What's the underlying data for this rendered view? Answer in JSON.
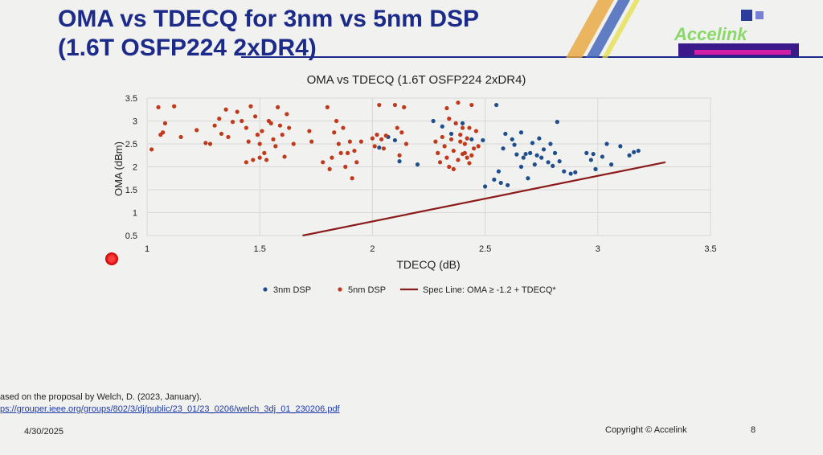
{
  "slide": {
    "title_line1": "OMA vs TDECQ for 3nm vs 5nm DSP",
    "title_line2": "(1.6T OSFP224 2xDR4)",
    "logo_text": "Accelink",
    "footnote_line1": "ased on the proposal by Welch, D. (2023, January).",
    "footnote_line2": "ps://grouper.ieee.org/groups/802/3/dj/public/23_01/23_0206/welch_3dj_01_230206.pdf",
    "date": "4/30/2025",
    "copyright": "Copyright © Accelink",
    "page_number": "8"
  },
  "colors": {
    "title": "#1c2a8a",
    "series_3nm": "#1f4e8c",
    "series_5nm": "#c0391b",
    "spec_line": "#8b1a1a"
  },
  "chart_data": {
    "type": "scatter",
    "title": "OMA vs TDECQ (1.6T OSFP224 2xDR4)",
    "xlabel": "TDECQ (dB)",
    "ylabel": "OMA (dBm)",
    "xlim": [
      1,
      3.5
    ],
    "ylim": [
      0.5,
      3.5
    ],
    "x_ticks": [
      "1",
      "1.5",
      "2",
      "2.5",
      "3",
      "3.5"
    ],
    "y_ticks": [
      "0.5",
      "1",
      "1.5",
      "2",
      "2.5",
      "3",
      "3.5"
    ],
    "grid": true,
    "legend_position": "bottom",
    "series": [
      {
        "name": "3nm DSP",
        "points": [
          [
            2.03,
            2.42
          ],
          [
            2.07,
            2.65
          ],
          [
            2.1,
            2.58
          ],
          [
            2.12,
            2.12
          ],
          [
            2.2,
            2.05
          ],
          [
            2.27,
            3.0
          ],
          [
            2.31,
            2.88
          ],
          [
            2.35,
            2.72
          ],
          [
            2.4,
            2.95
          ],
          [
            2.44,
            2.6
          ],
          [
            2.49,
            2.58
          ],
          [
            2.5,
            1.57
          ],
          [
            2.54,
            1.72
          ],
          [
            2.55,
            3.35
          ],
          [
            2.56,
            1.9
          ],
          [
            2.57,
            1.65
          ],
          [
            2.58,
            2.4
          ],
          [
            2.59,
            2.72
          ],
          [
            2.6,
            1.6
          ],
          [
            2.62,
            2.6
          ],
          [
            2.63,
            2.48
          ],
          [
            2.64,
            2.27
          ],
          [
            2.66,
            2.75
          ],
          [
            2.67,
            2.2
          ],
          [
            2.68,
            2.28
          ],
          [
            2.69,
            1.75
          ],
          [
            2.7,
            2.3
          ],
          [
            2.71,
            2.52
          ],
          [
            2.72,
            2.05
          ],
          [
            2.73,
            2.25
          ],
          [
            2.74,
            2.62
          ],
          [
            2.75,
            2.2
          ],
          [
            2.76,
            2.38
          ],
          [
            2.78,
            2.1
          ],
          [
            2.79,
            2.5
          ],
          [
            2.8,
            2.02
          ],
          [
            2.81,
            2.3
          ],
          [
            2.82,
            2.98
          ],
          [
            2.83,
            2.12
          ],
          [
            2.85,
            1.9
          ],
          [
            2.88,
            1.85
          ],
          [
            2.9,
            1.88
          ],
          [
            2.95,
            2.3
          ],
          [
            2.97,
            2.15
          ],
          [
            2.99,
            1.95
          ],
          [
            3.02,
            2.22
          ],
          [
            3.04,
            2.5
          ],
          [
            3.06,
            2.05
          ],
          [
            3.1,
            2.45
          ],
          [
            3.14,
            2.25
          ],
          [
            3.16,
            2.32
          ],
          [
            3.18,
            2.35
          ],
          [
            2.98,
            2.28
          ],
          [
            2.66,
            2.0
          ]
        ]
      },
      {
        "name": "5nm DSP",
        "points": [
          [
            1.02,
            2.38
          ],
          [
            1.05,
            3.3
          ],
          [
            1.06,
            2.7
          ],
          [
            1.07,
            2.75
          ],
          [
            1.08,
            2.95
          ],
          [
            1.12,
            3.32
          ],
          [
            1.15,
            2.65
          ],
          [
            1.22,
            2.8
          ],
          [
            1.26,
            2.52
          ],
          [
            1.28,
            2.5
          ],
          [
            1.3,
            2.9
          ],
          [
            1.32,
            3.05
          ],
          [
            1.33,
            2.72
          ],
          [
            1.35,
            3.25
          ],
          [
            1.36,
            2.65
          ],
          [
            1.38,
            2.98
          ],
          [
            1.4,
            3.2
          ],
          [
            1.42,
            3.0
          ],
          [
            1.44,
            2.85
          ],
          [
            1.44,
            2.1
          ],
          [
            1.45,
            2.55
          ],
          [
            1.46,
            3.32
          ],
          [
            1.47,
            2.15
          ],
          [
            1.48,
            3.1
          ],
          [
            1.49,
            2.7
          ],
          [
            1.5,
            2.2
          ],
          [
            1.5,
            2.5
          ],
          [
            1.51,
            2.78
          ],
          [
            1.52,
            2.3
          ],
          [
            1.53,
            2.15
          ],
          [
            1.54,
            3.0
          ],
          [
            1.55,
            2.95
          ],
          [
            1.56,
            2.6
          ],
          [
            1.57,
            2.45
          ],
          [
            1.58,
            3.3
          ],
          [
            1.59,
            2.9
          ],
          [
            1.6,
            2.7
          ],
          [
            1.61,
            2.22
          ],
          [
            1.62,
            3.15
          ],
          [
            1.63,
            2.85
          ],
          [
            1.65,
            2.5
          ],
          [
            1.72,
            2.78
          ],
          [
            1.73,
            2.55
          ],
          [
            1.78,
            2.1
          ],
          [
            1.8,
            3.3
          ],
          [
            1.81,
            1.95
          ],
          [
            1.82,
            2.2
          ],
          [
            1.83,
            2.75
          ],
          [
            1.84,
            3.0
          ],
          [
            1.85,
            2.5
          ],
          [
            1.86,
            2.3
          ],
          [
            1.87,
            2.85
          ],
          [
            1.88,
            2.0
          ],
          [
            1.89,
            2.3
          ],
          [
            1.9,
            2.55
          ],
          [
            1.91,
            1.75
          ],
          [
            1.92,
            2.35
          ],
          [
            1.93,
            2.1
          ],
          [
            1.95,
            2.55
          ],
          [
            2.0,
            2.62
          ],
          [
            2.01,
            2.45
          ],
          [
            2.02,
            2.7
          ],
          [
            2.03,
            3.35
          ],
          [
            2.04,
            2.6
          ],
          [
            2.05,
            2.4
          ],
          [
            2.06,
            2.68
          ],
          [
            2.1,
            3.35
          ],
          [
            2.11,
            2.85
          ],
          [
            2.12,
            2.25
          ],
          [
            2.13,
            2.75
          ],
          [
            2.14,
            3.3
          ],
          [
            2.15,
            2.5
          ],
          [
            2.28,
            2.55
          ],
          [
            2.29,
            2.3
          ],
          [
            2.3,
            2.1
          ],
          [
            2.31,
            2.65
          ],
          [
            2.32,
            2.45
          ],
          [
            2.33,
            2.2
          ],
          [
            2.34,
            3.05
          ],
          [
            2.35,
            2.6
          ],
          [
            2.36,
            2.35
          ],
          [
            2.37,
            2.95
          ],
          [
            2.38,
            2.15
          ],
          [
            2.39,
            2.7
          ],
          [
            2.4,
            2.28
          ],
          [
            2.41,
            2.5
          ],
          [
            2.42,
            2.2
          ],
          [
            2.43,
            2.85
          ],
          [
            2.44,
            3.35
          ],
          [
            2.45,
            2.4
          ],
          [
            2.33,
            3.28
          ],
          [
            2.34,
            2.0
          ],
          [
            2.36,
            1.95
          ],
          [
            2.38,
            3.4
          ],
          [
            2.39,
            2.55
          ],
          [
            2.4,
            2.85
          ],
          [
            2.41,
            2.3
          ],
          [
            2.42,
            2.62
          ],
          [
            2.43,
            2.08
          ],
          [
            2.44,
            2.25
          ],
          [
            2.46,
            2.78
          ],
          [
            2.47,
            2.45
          ]
        ]
      }
    ],
    "spec_line": {
      "name": "Spec Line: OMA ≥ -1.2 + TDECQ*",
      "x": [
        1.69,
        3.3
      ],
      "y": [
        0.5,
        2.1
      ]
    }
  }
}
